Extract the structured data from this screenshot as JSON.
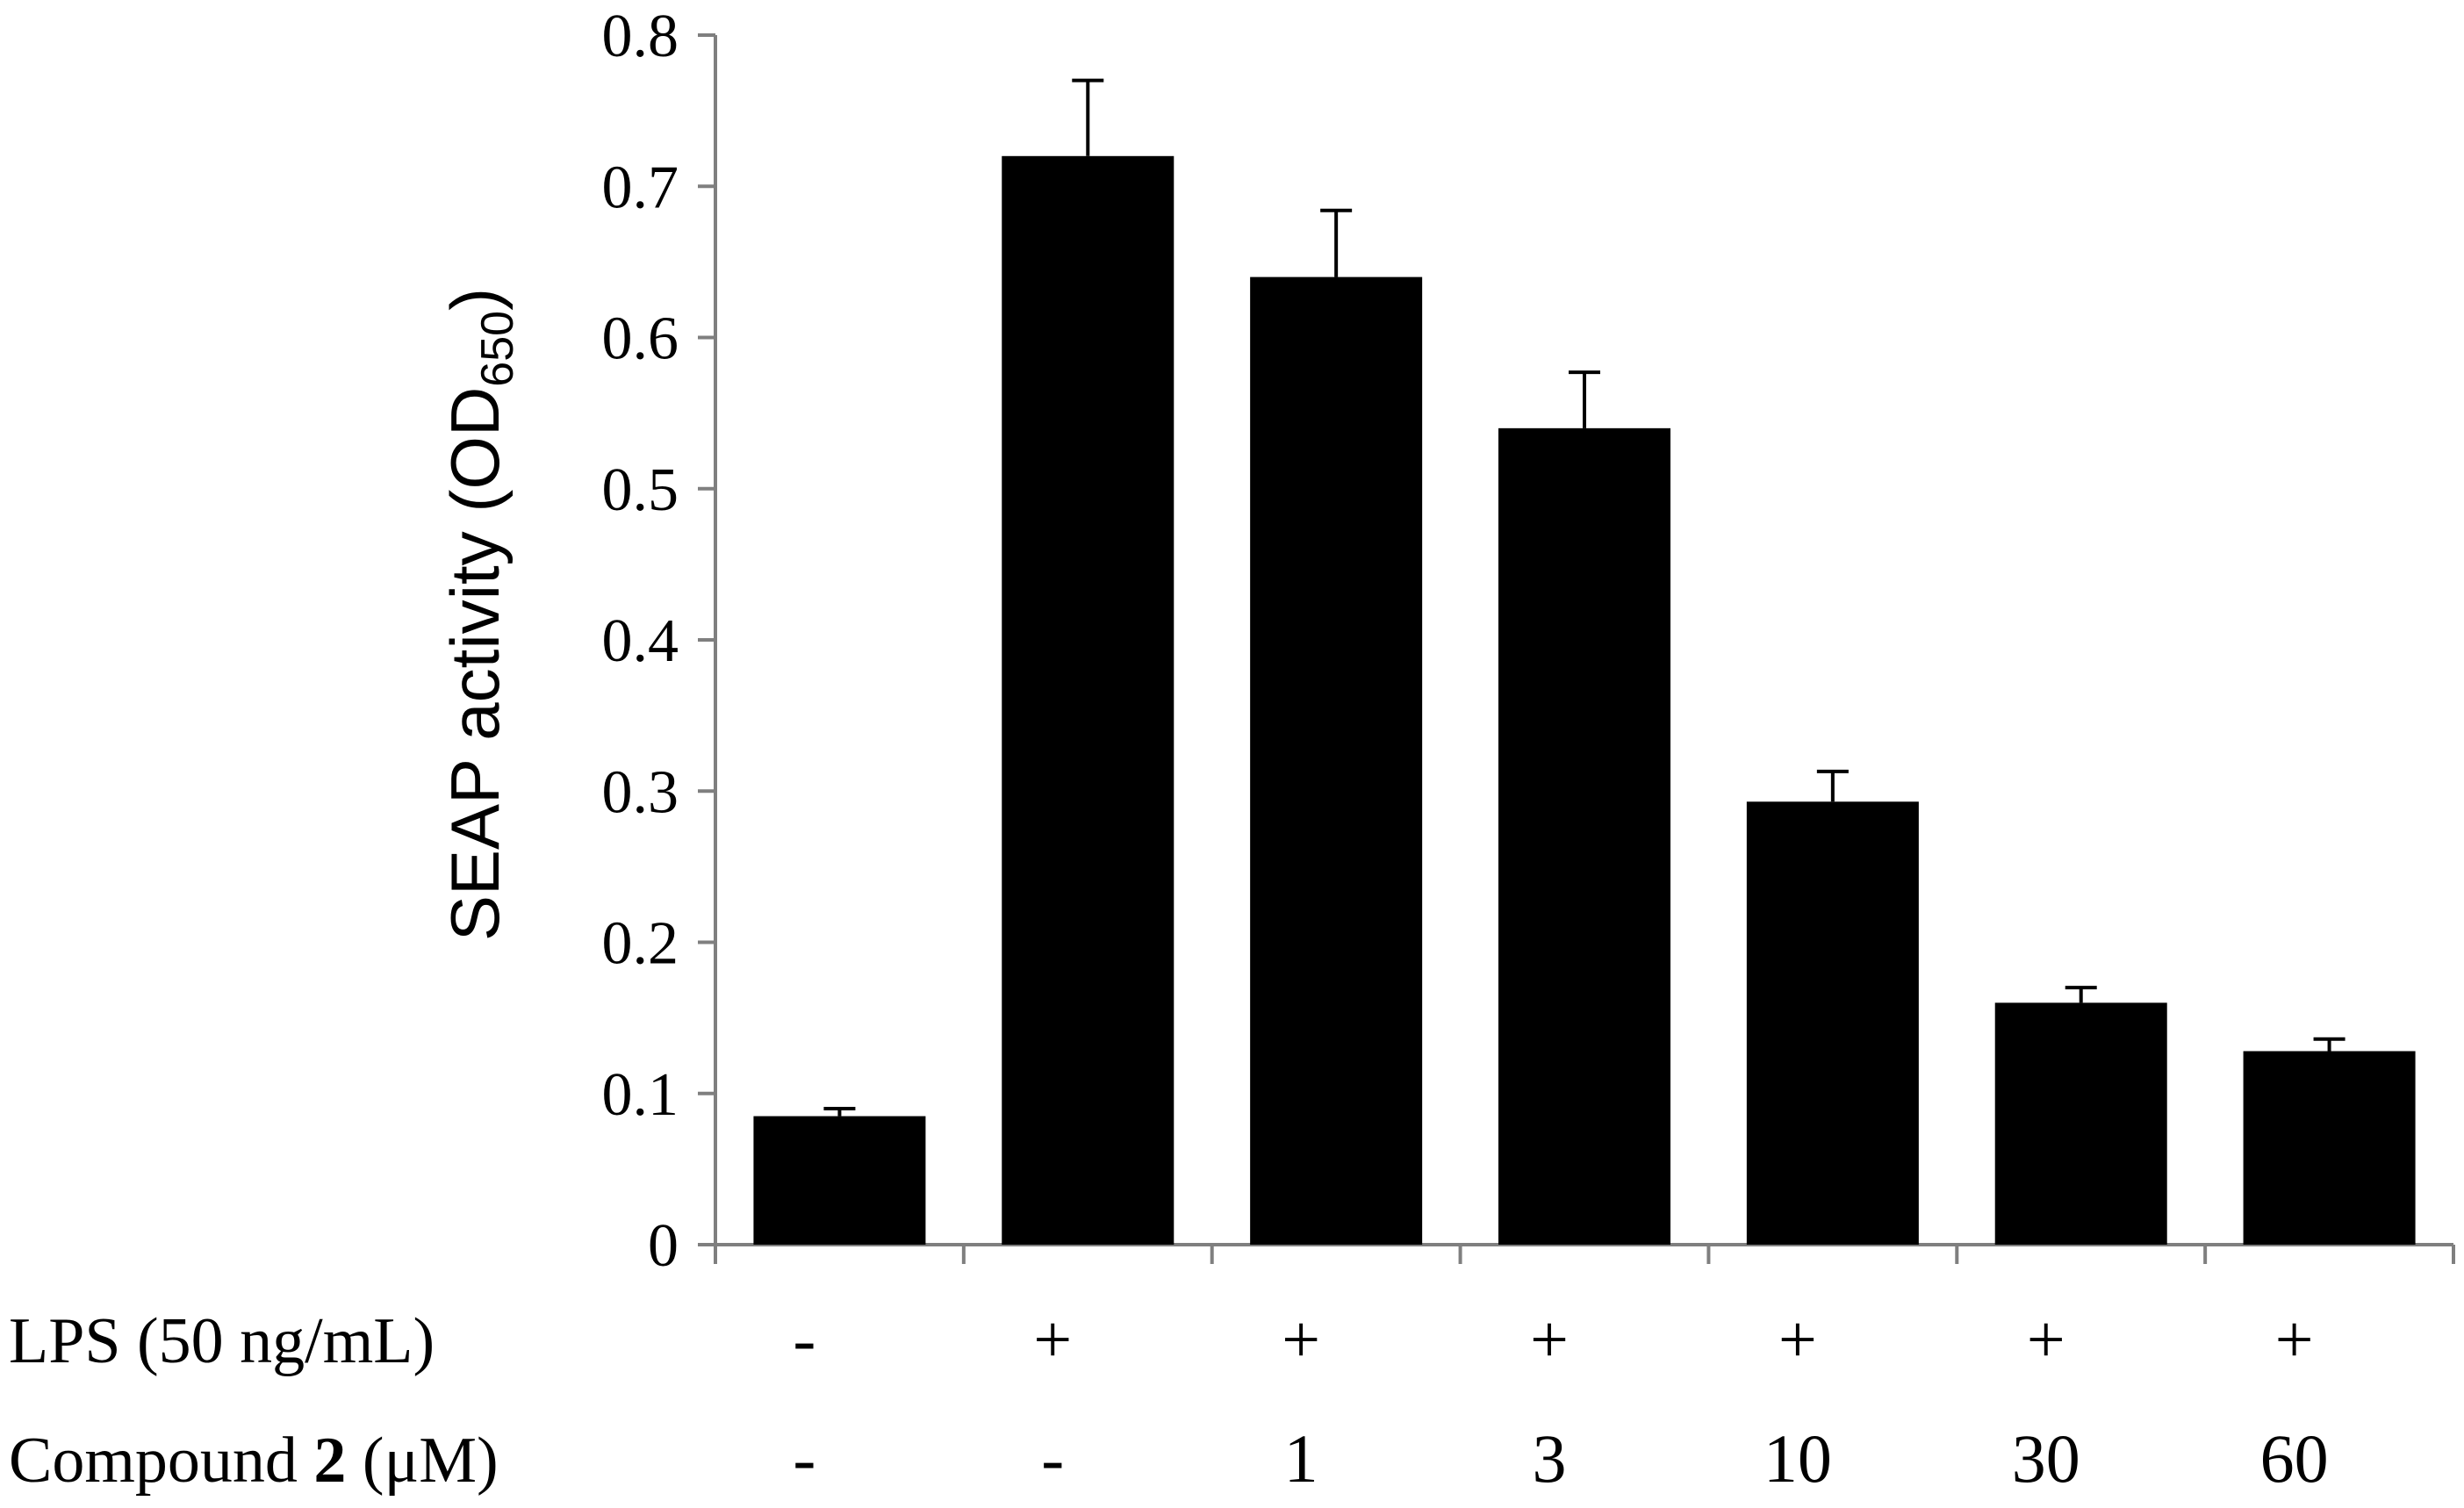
{
  "chart_data": {
    "type": "bar",
    "title": "",
    "xlabel": "",
    "ylabel": {
      "main": "SEAP activity (OD",
      "subscript": "650",
      "close": ")"
    },
    "ylim": [
      0,
      0.8
    ],
    "yticks": [
      "0",
      "0.1",
      "0.2",
      "0.3",
      "0.4",
      "0.5",
      "0.6",
      "0.7",
      "0.8"
    ],
    "ytick_values": [
      0,
      0.1,
      0.2,
      0.3,
      0.4,
      0.5,
      0.6,
      0.7,
      0.8
    ],
    "grid": false,
    "bar_color": "#000000",
    "values": [
      0.085,
      0.72,
      0.64,
      0.54,
      0.293,
      0.16,
      0.128
    ],
    "errors": [
      0.005,
      0.05,
      0.044,
      0.037,
      0.02,
      0.01,
      0.008
    ],
    "condition_rows": [
      {
        "label_parts": [
          {
            "text": "LPS (50 ng/mL)",
            "bold": false
          }
        ],
        "cells": [
          "-",
          "+",
          "+",
          "+",
          "+",
          "+",
          "+"
        ]
      },
      {
        "label_parts": [
          {
            "text": "Compound ",
            "bold": false
          },
          {
            "text": "2",
            "bold": true
          },
          {
            "text": " (μM)",
            "bold": false
          }
        ],
        "cells": [
          "-",
          "-",
          "1",
          "3",
          "10",
          "30",
          "60"
        ]
      }
    ]
  }
}
